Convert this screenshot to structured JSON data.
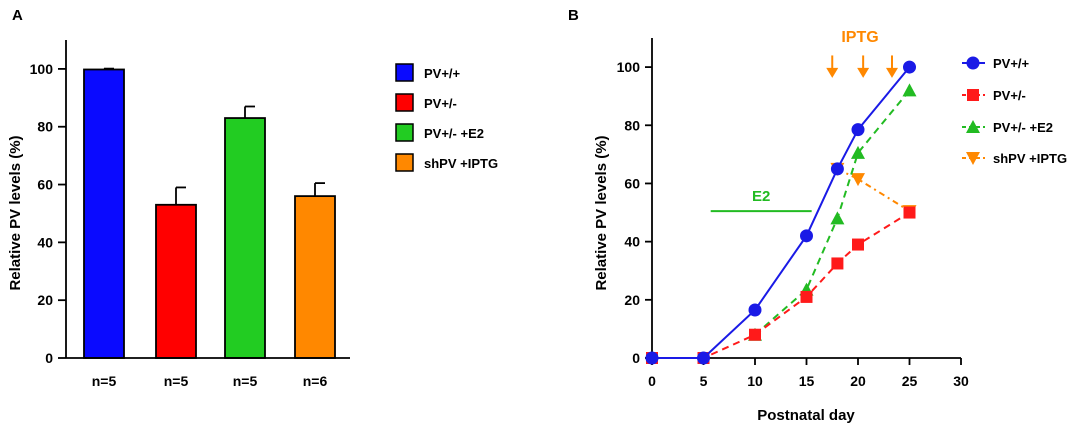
{
  "chart_data": [
    {
      "panel_label": "A",
      "type": "bar",
      "ylabel": "Relative PV levels (%)",
      "xlabel": "",
      "ylim": [
        0,
        110
      ],
      "yticks": [
        0,
        20,
        40,
        60,
        80,
        100
      ],
      "categories": [
        "n=5",
        "n=5",
        "n=5",
        "n=6"
      ],
      "values": [
        99.8,
        53,
        83,
        56
      ],
      "errors": [
        0.3,
        6,
        4,
        4.5
      ],
      "colors": [
        "#0a0aff",
        "#ff0000",
        "#22cc22",
        "#ff8800"
      ],
      "legend": [
        {
          "label": "PV+/+",
          "color": "#0a0aff"
        },
        {
          "label": "PV+/-",
          "color": "#ff0000"
        },
        {
          "label": "PV+/-   +E2",
          "color": "#22cc22"
        },
        {
          "label": "shPV  +IPTG",
          "color": "#ff8800"
        }
      ]
    },
    {
      "panel_label": "B",
      "type": "line",
      "xlabel": "Postnatal  day",
      "ylabel": "Relative PV levels (%)",
      "xlim": [
        0,
        30
      ],
      "ylim": [
        0,
        110
      ],
      "xticks": [
        0,
        5,
        10,
        15,
        20,
        25,
        30
      ],
      "yticks": [
        0,
        20,
        40,
        60,
        80,
        100
      ],
      "series": [
        {
          "name": "PV+/+",
          "color": "#1a1ae6",
          "marker": "circle",
          "dash": "solid",
          "x": [
            0,
            5,
            10,
            15,
            18,
            20,
            25
          ],
          "y": [
            0,
            0,
            16.5,
            42,
            65,
            78.5,
            100
          ]
        },
        {
          "name": "PV+/-",
          "color": "#ff1a1a",
          "marker": "square",
          "dash": "dashed",
          "x": [
            0,
            5,
            10,
            15,
            18,
            20,
            25
          ],
          "y": [
            0,
            0,
            8,
            21,
            32.5,
            39,
            50
          ]
        },
        {
          "name": "PV+/-   +E2",
          "color": "#22bb22",
          "marker": "triangle-up",
          "dash": "dashed",
          "x": [
            10,
            15,
            18,
            20,
            25
          ],
          "y": [
            8,
            23.5,
            48,
            70.5,
            92
          ]
        },
        {
          "name": "shPV  +IPTG",
          "color": "#ff8800",
          "marker": "triangle-down",
          "dash": "dashdot",
          "x": [
            18,
            20,
            25
          ],
          "y": [
            65,
            61.5,
            50.5
          ]
        }
      ],
      "annotations": {
        "e2": {
          "text": "E2",
          "color": "#22bb22",
          "x_start": 5.7,
          "x_end": 15.5,
          "y": 50.5
        },
        "iptg": {
          "text": "IPTG",
          "color": "#ff8800",
          "arrow_x": [
            17.5,
            20.5,
            23.3
          ],
          "arrow_y_top": 104,
          "arrow_y_bottom": 97
        }
      }
    }
  ]
}
